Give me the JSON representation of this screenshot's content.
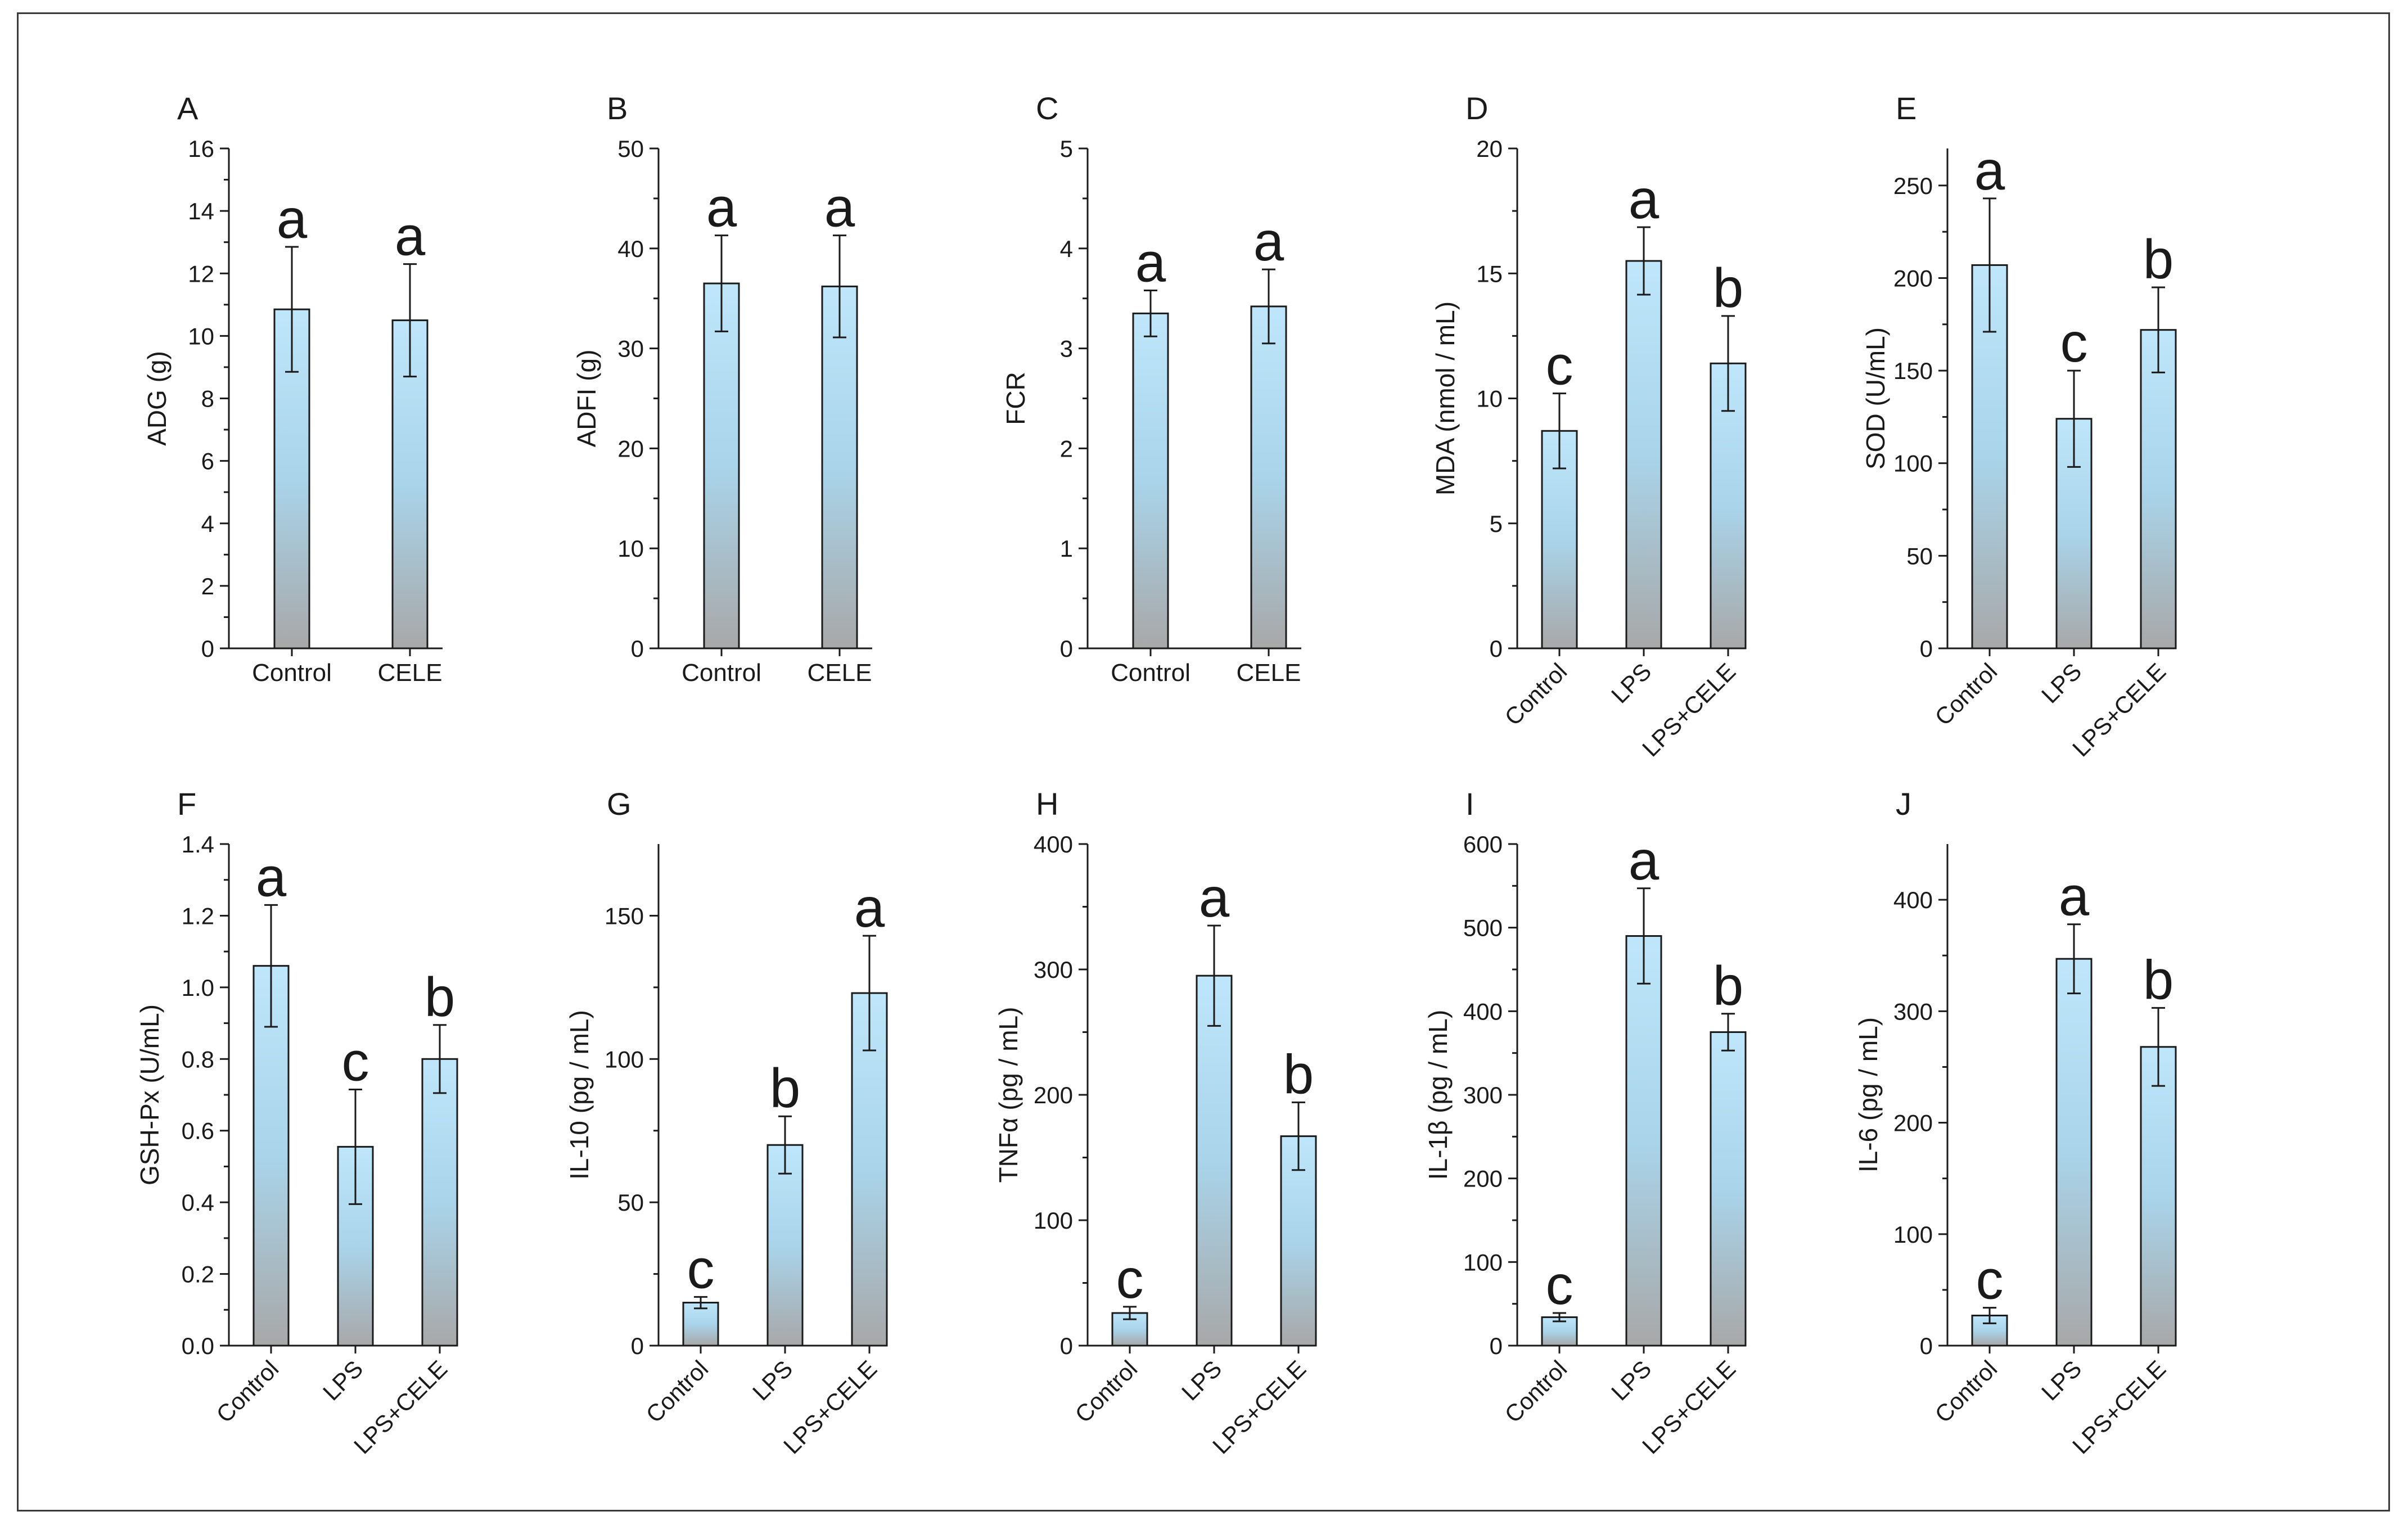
{
  "figure": {
    "panels": [
      {
        "id": "A",
        "row": 0,
        "col": 0,
        "ylabel": "ADG (g)",
        "ylim": [
          0,
          16
        ],
        "yticks": [
          0,
          2,
          4,
          6,
          8,
          10,
          12,
          14,
          16
        ],
        "categories": [
          "Control",
          "CELE"
        ],
        "rotate_labels": false
      },
      {
        "id": "B",
        "row": 0,
        "col": 1,
        "ylabel": "ADFI (g)",
        "ylim": [
          0,
          50
        ],
        "yticks": [
          0,
          10,
          20,
          30,
          40,
          50
        ],
        "categories": [
          "Control",
          "CELE"
        ],
        "rotate_labels": false
      },
      {
        "id": "C",
        "row": 0,
        "col": 2,
        "ylabel": "FCR",
        "ylim": [
          0,
          5
        ],
        "yticks": [
          0,
          1,
          2,
          3,
          4,
          5
        ],
        "categories": [
          "Control",
          "CELE"
        ],
        "rotate_labels": false
      },
      {
        "id": "D",
        "row": 0,
        "col": 3,
        "ylabel": "MDA (nmol / mL)",
        "ylim": [
          0,
          20
        ],
        "yticks": [
          0,
          5,
          10,
          15,
          20
        ],
        "categories": [
          "Control",
          "LPS",
          "LPS+CELE"
        ],
        "rotate_labels": true
      },
      {
        "id": "E",
        "row": 0,
        "col": 4,
        "ylabel": "SOD (U/mL)",
        "ylim": [
          0,
          270
        ],
        "yticks": [
          0,
          50,
          100,
          150,
          200,
          250
        ],
        "categories": [
          "Control",
          "LPS",
          "LPS+CELE"
        ],
        "rotate_labels": true
      },
      {
        "id": "F",
        "row": 1,
        "col": 0,
        "ylabel": "GSH-Px (U/mL)",
        "ylim": [
          0,
          1.4
        ],
        "yticks": [
          "0.0",
          "0.2",
          "0.4",
          "0.6",
          "0.8",
          "1.0",
          "1.2",
          "1.4"
        ],
        "categories": [
          "Control",
          "LPS",
          "LPS+CELE"
        ],
        "rotate_labels": true
      },
      {
        "id": "G",
        "row": 1,
        "col": 1,
        "ylabel": "IL-10 (pg / mL)",
        "ylim": [
          0,
          175
        ],
        "yticks": [
          0,
          50,
          100,
          150
        ],
        "categories": [
          "Control",
          "LPS",
          "LPS+CELE"
        ],
        "rotate_labels": true
      },
      {
        "id": "H",
        "row": 1,
        "col": 2,
        "ylabel": "TNFα (pg / mL)",
        "ylim": [
          0,
          400
        ],
        "yticks": [
          0,
          100,
          200,
          300,
          400
        ],
        "categories": [
          "Control",
          "LPS",
          "LPS+CELE"
        ],
        "rotate_labels": true
      },
      {
        "id": "I",
        "row": 1,
        "col": 3,
        "ylabel": "IL-1β (pg / mL)",
        "ylim": [
          0,
          600
        ],
        "yticks": [
          0,
          100,
          200,
          300,
          400,
          500,
          600
        ],
        "categories": [
          "Control",
          "LPS",
          "LPS+CELE"
        ],
        "rotate_labels": true
      },
      {
        "id": "J",
        "row": 1,
        "col": 4,
        "ylabel": "IL-6 (pg / mL)",
        "ylim": [
          0,
          450
        ],
        "yticks": [
          0,
          100,
          200,
          300,
          400
        ],
        "categories": [
          "Control",
          "LPS",
          "LPS+CELE"
        ],
        "rotate_labels": true
      }
    ]
  },
  "chart_data": [
    {
      "type": "bar",
      "panel": "A",
      "ylabel": "ADG (g)",
      "ylim": [
        0,
        16
      ],
      "categories": [
        "Control",
        "CELE"
      ],
      "values": [
        10.85,
        10.5
      ],
      "errors": [
        2.0,
        1.8
      ],
      "letters": [
        "a",
        "a"
      ]
    },
    {
      "type": "bar",
      "panel": "B",
      "ylabel": "ADFI (g)",
      "ylim": [
        0,
        50
      ],
      "categories": [
        "Control",
        "CELE"
      ],
      "values": [
        36.5,
        36.2
      ],
      "errors": [
        4.8,
        5.1
      ],
      "letters": [
        "a",
        "a"
      ]
    },
    {
      "type": "bar",
      "panel": "C",
      "ylabel": "FCR",
      "ylim": [
        0,
        5
      ],
      "categories": [
        "Control",
        "CELE"
      ],
      "values": [
        3.35,
        3.42
      ],
      "errors": [
        0.23,
        0.37
      ],
      "letters": [
        "a",
        "a"
      ]
    },
    {
      "type": "bar",
      "panel": "D",
      "ylabel": "MDA (nmol / mL)",
      "ylim": [
        0,
        20
      ],
      "categories": [
        "Control",
        "LPS",
        "LPS+CELE"
      ],
      "values": [
        8.7,
        15.5,
        11.4
      ],
      "errors": [
        1.5,
        1.35,
        1.9
      ],
      "letters": [
        "c",
        "a",
        "b"
      ]
    },
    {
      "type": "bar",
      "panel": "E",
      "ylabel": "SOD (U/mL)",
      "ylim": [
        0,
        270
      ],
      "categories": [
        "Control",
        "LPS",
        "LPS+CELE"
      ],
      "values": [
        207,
        124,
        172
      ],
      "errors": [
        36,
        26,
        23
      ],
      "letters": [
        "a",
        "c",
        "b"
      ]
    },
    {
      "type": "bar",
      "panel": "F",
      "ylabel": "GSH-Px (U/mL)",
      "ylim": [
        0,
        1.4
      ],
      "categories": [
        "Control",
        "LPS",
        "LPS+CELE"
      ],
      "values": [
        1.06,
        0.555,
        0.8
      ],
      "errors": [
        0.17,
        0.16,
        0.095
      ],
      "letters": [
        "a",
        "c",
        "b"
      ]
    },
    {
      "type": "bar",
      "panel": "G",
      "ylabel": "IL-10 (pg / mL)",
      "ylim": [
        0,
        175
      ],
      "categories": [
        "Control",
        "LPS",
        "LPS+CELE"
      ],
      "values": [
        15,
        70,
        123
      ],
      "errors": [
        2,
        10,
        20
      ],
      "letters": [
        "c",
        "b",
        "a"
      ]
    },
    {
      "type": "bar",
      "panel": "H",
      "ylabel": "TNFα (pg / mL)",
      "ylim": [
        0,
        400
      ],
      "categories": [
        "Control",
        "LPS",
        "LPS+CELE"
      ],
      "values": [
        26,
        295,
        167
      ],
      "errors": [
        5,
        40,
        27
      ],
      "letters": [
        "c",
        "a",
        "b"
      ]
    },
    {
      "type": "bar",
      "panel": "I",
      "ylabel": "IL-1β (pg / mL)",
      "ylim": [
        0,
        600
      ],
      "categories": [
        "Control",
        "LPS",
        "LPS+CELE"
      ],
      "values": [
        34,
        490,
        375
      ],
      "errors": [
        5,
        57,
        22
      ],
      "letters": [
        "c",
        "a",
        "b"
      ]
    },
    {
      "type": "bar",
      "panel": "J",
      "ylabel": "IL-6 (pg / mL)",
      "ylim": [
        0,
        450
      ],
      "categories": [
        "Control",
        "LPS",
        "LPS+CELE"
      ],
      "values": [
        27,
        347,
        268
      ],
      "errors": [
        7,
        31,
        35
      ],
      "letters": [
        "c",
        "a",
        "b"
      ]
    }
  ]
}
